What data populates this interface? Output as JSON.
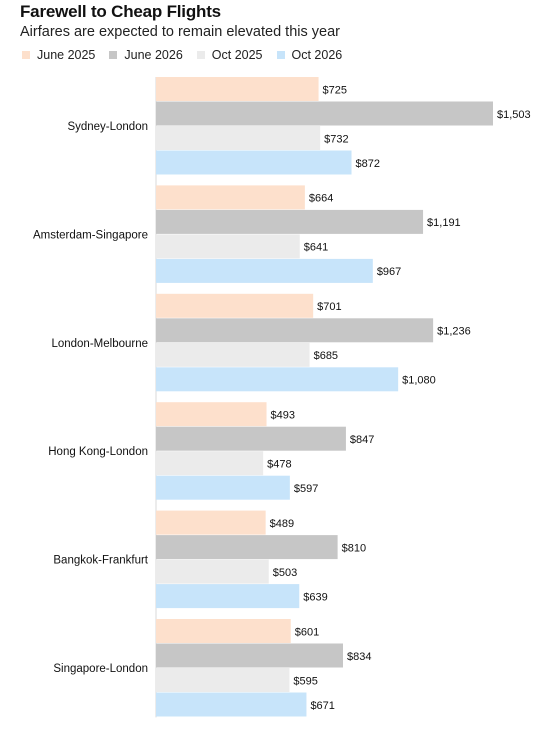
{
  "chart_data": {
    "type": "bar",
    "orientation": "horizontal",
    "title": "Farewell to Cheap Flights",
    "subtitle": "Airfares are expected to remain elevated this year",
    "legend_placement": "top-left",
    "grid": false,
    "xlim": [
      0,
      1503
    ],
    "categories": [
      "Sydney-London",
      "Amsterdam-Singapore",
      "London-Melbourne",
      "Hong Kong-London",
      "Bangkok-Frankfurt",
      "Singapore-London"
    ],
    "series": [
      {
        "name": "June 2025",
        "color": "#fde0cc",
        "values": [
          725,
          664,
          701,
          493,
          489,
          601
        ],
        "labels": [
          "$725",
          "$664",
          "$701",
          "$493",
          "$489",
          "$601"
        ]
      },
      {
        "name": "June 2026",
        "color": "#c6c6c6",
        "values": [
          1503,
          1191,
          1236,
          847,
          810,
          834
        ],
        "labels": [
          "$1,503",
          "$1,191",
          "$1,236",
          "$847",
          "$810",
          "$834"
        ]
      },
      {
        "name": "Oct 2025",
        "color": "#ebebeb",
        "values": [
          732,
          641,
          685,
          478,
          503,
          595
        ],
        "labels": [
          "$732",
          "$641",
          "$685",
          "$478",
          "$503",
          "$595"
        ]
      },
      {
        "name": "Oct 2026",
        "color": "#c7e4fa",
        "values": [
          872,
          967,
          1080,
          597,
          639,
          671
        ],
        "labels": [
          "$872",
          "$967",
          "$1,080",
          "$597",
          "$639",
          "$671"
        ]
      }
    ]
  }
}
